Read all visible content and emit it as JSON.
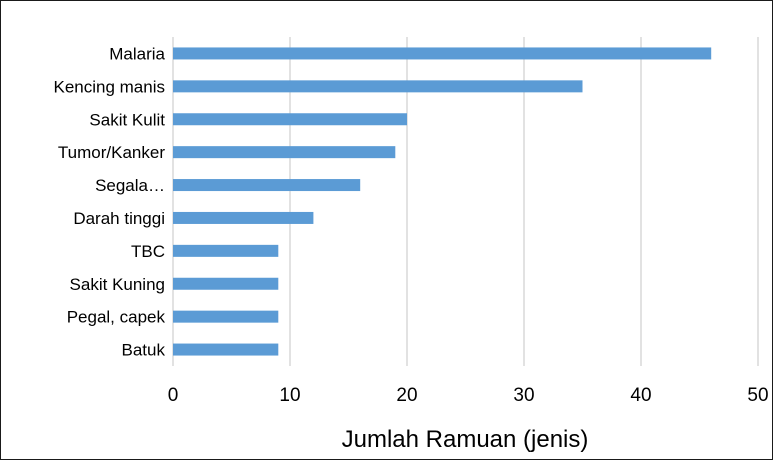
{
  "chart_data": {
    "type": "bar",
    "orientation": "horizontal",
    "categories": [
      "Malaria",
      "Kencing manis",
      "Sakit Kulit",
      "Tumor/Kanker",
      "Segala…",
      "Darah tinggi",
      "TBC",
      "Sakit Kuning",
      "Pegal, capek",
      "Batuk"
    ],
    "values": [
      46,
      35,
      20,
      19,
      16,
      12,
      9,
      9,
      9,
      9
    ],
    "title": "",
    "xlabel": "Jumlah Ramuan (jenis)",
    "ylabel": "",
    "xlim": [
      0,
      50
    ],
    "x_ticks": [
      0,
      10,
      20,
      30,
      40,
      50
    ],
    "x_tick_labels": [
      "0",
      "10",
      "20",
      "30",
      "40",
      "50"
    ],
    "grid": "vertical",
    "legend": "none",
    "bar_color": "#5b9bd5",
    "grid_color": "#d9d9d9"
  }
}
